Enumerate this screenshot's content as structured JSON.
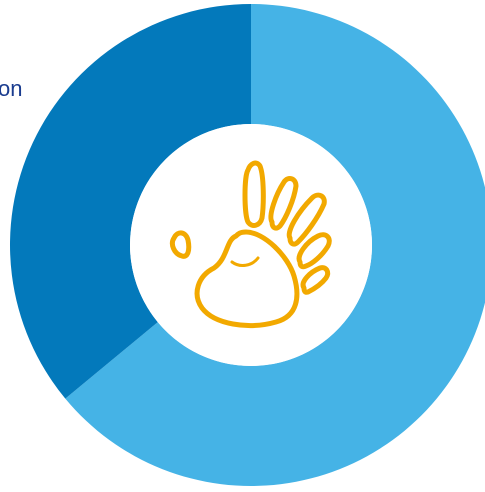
{
  "chart_data": {
    "type": "pie",
    "variant": "donut",
    "slices": [
      {
        "value": 64,
        "color": "#45b3e6"
      },
      {
        "value": 36,
        "color": "#0379bb"
      }
    ],
    "start_angle_deg": 0,
    "direction": "clockwise",
    "center_icon": "hand-print-icon",
    "center_icon_color": "#f2a900",
    "visible_label_fragment": "on",
    "label_color": "#1a3c8f"
  }
}
